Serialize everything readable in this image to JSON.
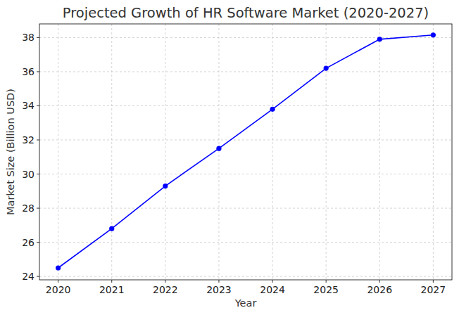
{
  "chart_data": {
    "type": "line",
    "title": "Projected Growth of HR Software Market (2020-2027)",
    "xlabel": "Year",
    "ylabel": "Market Size (Billion USD)",
    "x": [
      2020,
      2021,
      2022,
      2023,
      2024,
      2025,
      2026,
      2027
    ],
    "values": [
      24.5,
      26.8,
      29.3,
      31.5,
      33.8,
      36.2,
      37.9,
      38.15
    ],
    "color": "#0000ff",
    "marker": "circle",
    "line_style": "solid",
    "xlim": [
      2019.65,
      2027.35
    ],
    "xticks": [
      2020,
      2021,
      2022,
      2023,
      2024,
      2025,
      2026,
      2027
    ],
    "ylim": [
      23.8,
      38.8
    ],
    "yticks": [
      24,
      26,
      28,
      30,
      32,
      34,
      36,
      38
    ],
    "grid": true
  }
}
